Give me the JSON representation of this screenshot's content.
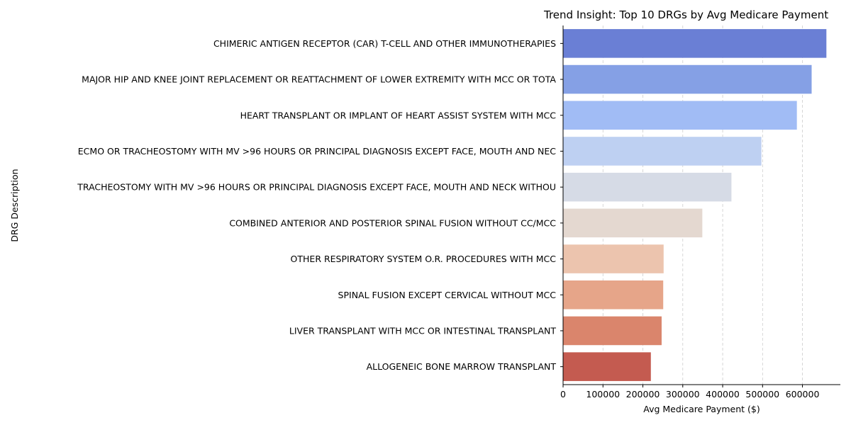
{
  "chart_data": {
    "type": "bar",
    "orientation": "horizontal",
    "title": "Trend Insight: Top 10 DRGs by Avg Medicare Payment",
    "xlabel": "Avg Medicare Payment ($)",
    "ylabel": "DRG Description",
    "xlim": [
      0,
      695000
    ],
    "x_ticks": [
      0,
      100000,
      200000,
      300000,
      400000,
      500000,
      600000
    ],
    "x_tick_labels": [
      "0",
      "100000",
      "200000",
      "300000",
      "400000",
      "500000",
      "600000"
    ],
    "grid": "x-axis dashed",
    "categories": [
      "CHIMERIC ANTIGEN RECEPTOR (CAR) T-CELL AND OTHER IMMUNOTHERAPIES",
      "MAJOR HIP AND KNEE JOINT REPLACEMENT OR REATTACHMENT OF LOWER EXTREMITY WITH MCC OR TOTA",
      "HEART TRANSPLANT OR IMPLANT OF HEART ASSIST SYSTEM WITH MCC",
      "ECMO OR TRACHEOSTOMY WITH MV >96 HOURS OR PRINCIPAL DIAGNOSIS EXCEPT FACE, MOUTH AND NEC",
      "TRACHEOSTOMY WITH MV >96 HOURS OR PRINCIPAL DIAGNOSIS EXCEPT FACE, MOUTH AND NECK WITHOU",
      "COMBINED ANTERIOR AND POSTERIOR SPINAL FUSION WITHOUT CC/MCC",
      "OTHER RESPIRATORY SYSTEM O.R. PROCEDURES WITH MCC",
      "SPINAL FUSION EXCEPT CERVICAL WITHOUT MCC",
      "LIVER TRANSPLANT WITH MCC OR INTESTINAL TRANSPLANT",
      "ALLOGENEIC BONE MARROW TRANSPLANT"
    ],
    "values": [
      660000,
      623000,
      586000,
      497000,
      422000,
      349000,
      252000,
      251000,
      247000,
      220000
    ],
    "colors": [
      "#6a7fd5",
      "#85a0e5",
      "#a1bcf5",
      "#bed0f2",
      "#d6dbe6",
      "#e4d8d0",
      "#ecc4ae",
      "#e6a589",
      "#da856c",
      "#c45b50"
    ]
  }
}
